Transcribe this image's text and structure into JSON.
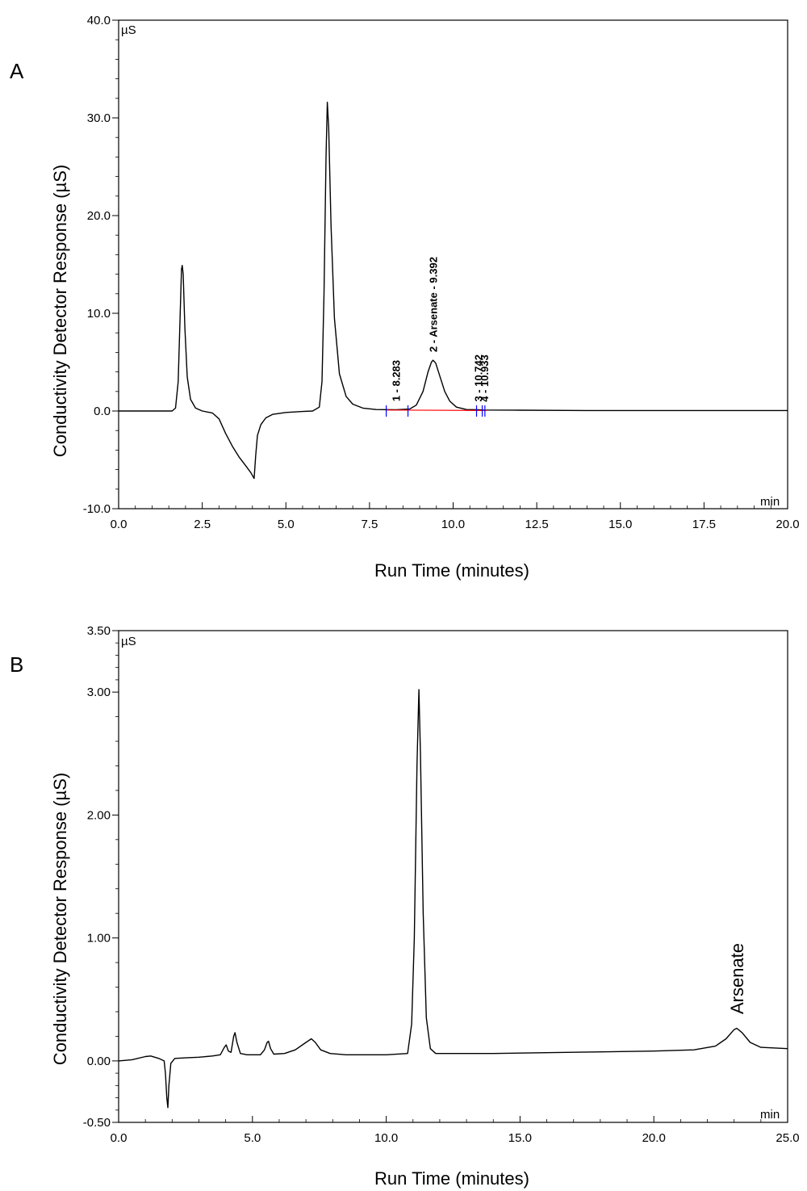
{
  "panels": [
    {
      "label": "A",
      "unit_label": "µS",
      "x_unit_label": "min",
      "xlabel": "Run Time (minutes)",
      "ylabel": "Conductivity Detector Response (µS)"
    },
    {
      "label": "B",
      "unit_label": "µS",
      "x_unit_label": "min",
      "xlabel": "Run Time (minutes)",
      "ylabel": "Conductivity Detector Response (µS)"
    }
  ],
  "chart_data": [
    {
      "type": "line",
      "title": "",
      "xlabel": "Run Time (minutes)",
      "ylabel": "Conductivity Detector Response (µS)",
      "xlim": [
        0,
        20
      ],
      "ylim": [
        -10,
        40
      ],
      "x_ticks": [
        0,
        2.5,
        5,
        7.5,
        10,
        12.5,
        15,
        17.5,
        20
      ],
      "x_tick_labels": [
        "0.0",
        "2.5",
        "5.0",
        "7.5",
        "10.0",
        "12.5",
        "15.0",
        "17.5",
        "20.0"
      ],
      "y_ticks": [
        -10,
        0,
        10,
        20,
        30,
        40
      ],
      "y_tick_labels": [
        "-10.0",
        "0.0",
        "10.0",
        "20.0",
        "30.0",
        "40.0"
      ],
      "series": [
        {
          "color": "#000000",
          "points": [
            [
              0,
              0
            ],
            [
              1.6,
              0
            ],
            [
              1.7,
              0.3
            ],
            [
              1.78,
              3
            ],
            [
              1.84,
              10
            ],
            [
              1.88,
              14.5
            ],
            [
              1.9,
              14.9
            ],
            [
              1.93,
              14
            ],
            [
              1.98,
              8.5
            ],
            [
              2.05,
              3.5
            ],
            [
              2.15,
              1.2
            ],
            [
              2.3,
              0.3
            ],
            [
              2.5,
              0
            ],
            [
              2.8,
              -0.2
            ],
            [
              3.0,
              -0.8
            ],
            [
              3.2,
              -2.3
            ],
            [
              3.4,
              -3.6
            ],
            [
              3.6,
              -4.7
            ],
            [
              3.8,
              -5.6
            ],
            [
              3.95,
              -6.3
            ],
            [
              4.05,
              -6.9
            ],
            [
              4.1,
              -4.5
            ],
            [
              4.15,
              -2.5
            ],
            [
              4.25,
              -1.4
            ],
            [
              4.4,
              -0.7
            ],
            [
              4.6,
              -0.35
            ],
            [
              5.0,
              -0.15
            ],
            [
              5.5,
              -0.05
            ],
            [
              5.8,
              0
            ],
            [
              6.0,
              0.4
            ],
            [
              6.08,
              3
            ],
            [
              6.14,
              12
            ],
            [
              6.2,
              26
            ],
            [
              6.24,
              31.6
            ],
            [
              6.28,
              29
            ],
            [
              6.35,
              19
            ],
            [
              6.45,
              9.5
            ],
            [
              6.6,
              3.8
            ],
            [
              6.8,
              1.5
            ],
            [
              7.0,
              0.7
            ],
            [
              7.3,
              0.3
            ],
            [
              7.7,
              0.15
            ],
            [
              8.3,
              0.12
            ],
            [
              8.7,
              0.2
            ],
            [
              8.9,
              0.6
            ],
            [
              9.1,
              2.0
            ],
            [
              9.25,
              4.0
            ],
            [
              9.35,
              5.0
            ],
            [
              9.4,
              5.2
            ],
            [
              9.48,
              4.9
            ],
            [
              9.6,
              3.6
            ],
            [
              9.75,
              2.0
            ],
            [
              9.9,
              1.0
            ],
            [
              10.1,
              0.4
            ],
            [
              10.4,
              0.15
            ],
            [
              10.74,
              0.12
            ],
            [
              10.93,
              0.1
            ],
            [
              12,
              0.08
            ],
            [
              14,
              0.05
            ],
            [
              20,
              0.05
            ]
          ]
        },
        {
          "color": "#ff0000",
          "points": [
            [
              8.0,
              0.1
            ],
            [
              11.0,
              0.05
            ]
          ]
        }
      ],
      "peaks": [
        {
          "label": "1 - 8.283",
          "x": 8.283,
          "y": 0.15
        },
        {
          "label": "2 - Arsenate - 9.392",
          "x": 9.392,
          "y": 5.2
        },
        {
          "label": "3 - 10.742",
          "x": 10.742,
          "y": 0.12
        },
        {
          "label": "4 - 10.933",
          "x": 10.933,
          "y": 0.1
        }
      ],
      "baseline_marks": [
        8.0,
        8.65,
        10.7,
        10.87,
        10.95
      ],
      "colors": {
        "trace": "#000000",
        "baseline": "#ff0000",
        "marks": "#0000ff"
      }
    },
    {
      "type": "line",
      "title": "",
      "xlabel": "Run Time (minutes)",
      "ylabel": "Conductivity Detector Response (µS)",
      "xlim": [
        0,
        25
      ],
      "ylim": [
        -0.5,
        3.5
      ],
      "x_ticks": [
        0,
        5,
        10,
        15,
        20,
        25
      ],
      "x_tick_labels": [
        "0.0",
        "5.0",
        "10.0",
        "15.0",
        "20.0",
        "25.0"
      ],
      "y_ticks": [
        -0.5,
        0,
        1,
        2,
        3,
        3.5
      ],
      "y_tick_labels": [
        "-0.50",
        "0.00",
        "1.00",
        "2.00",
        "3.00",
        "3.50"
      ],
      "series": [
        {
          "color": "#000000",
          "points": [
            [
              0,
              0
            ],
            [
              0.5,
              0.01
            ],
            [
              1.0,
              0.035
            ],
            [
              1.2,
              0.04
            ],
            [
              1.5,
              0.02
            ],
            [
              1.7,
              0.0
            ],
            [
              1.75,
              -0.1
            ],
            [
              1.8,
              -0.3
            ],
            [
              1.84,
              -0.38
            ],
            [
              1.88,
              -0.2
            ],
            [
              1.95,
              -0.02
            ],
            [
              2.1,
              0.02
            ],
            [
              2.5,
              0.025
            ],
            [
              3.0,
              0.03
            ],
            [
              3.5,
              0.04
            ],
            [
              3.8,
              0.05
            ],
            [
              3.95,
              0.11
            ],
            [
              4.02,
              0.13
            ],
            [
              4.1,
              0.08
            ],
            [
              4.2,
              0.07
            ],
            [
              4.3,
              0.2
            ],
            [
              4.35,
              0.23
            ],
            [
              4.42,
              0.15
            ],
            [
              4.55,
              0.06
            ],
            [
              4.8,
              0.05
            ],
            [
              5.3,
              0.05
            ],
            [
              5.45,
              0.09
            ],
            [
              5.55,
              0.15
            ],
            [
              5.6,
              0.16
            ],
            [
              5.68,
              0.1
            ],
            [
              5.8,
              0.055
            ],
            [
              6.2,
              0.06
            ],
            [
              6.6,
              0.09
            ],
            [
              7.0,
              0.15
            ],
            [
              7.2,
              0.18
            ],
            [
              7.35,
              0.15
            ],
            [
              7.55,
              0.09
            ],
            [
              7.9,
              0.06
            ],
            [
              8.5,
              0.05
            ],
            [
              10.0,
              0.05
            ],
            [
              10.8,
              0.06
            ],
            [
              10.95,
              0.3
            ],
            [
              11.05,
              1.0
            ],
            [
              11.15,
              2.4
            ],
            [
              11.22,
              3.02
            ],
            [
              11.28,
              2.5
            ],
            [
              11.38,
              1.2
            ],
            [
              11.5,
              0.35
            ],
            [
              11.65,
              0.1
            ],
            [
              11.85,
              0.06
            ],
            [
              14,
              0.06
            ],
            [
              17,
              0.07
            ],
            [
              20,
              0.08
            ],
            [
              21.5,
              0.09
            ],
            [
              22.3,
              0.12
            ],
            [
              22.7,
              0.18
            ],
            [
              23.0,
              0.255
            ],
            [
              23.1,
              0.265
            ],
            [
              23.3,
              0.23
            ],
            [
              23.6,
              0.15
            ],
            [
              24.0,
              0.11
            ],
            [
              25,
              0.1
            ]
          ]
        }
      ],
      "annotations": [
        {
          "text": "Arsenate",
          "x": 23.1,
          "y": 0.38
        }
      ],
      "colors": {
        "trace": "#000000"
      }
    }
  ]
}
